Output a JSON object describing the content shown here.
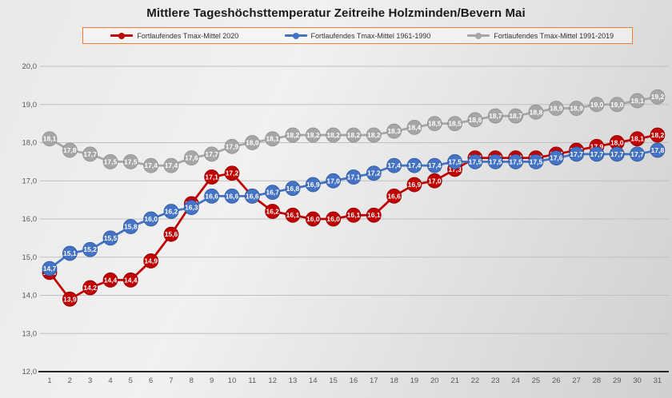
{
  "title": "Mittlere Tageshöchsttemperatur Zeitreihe Holzminden/Bevern Mai",
  "chart_data": {
    "type": "line",
    "title": "Mittlere Tageshöchsttemperatur Zeitreihe Holzminden/Bevern Mai",
    "x": [
      1,
      2,
      3,
      4,
      5,
      6,
      7,
      8,
      9,
      10,
      11,
      12,
      13,
      14,
      15,
      16,
      17,
      18,
      19,
      20,
      21,
      22,
      23,
      24,
      25,
      26,
      27,
      28,
      29,
      30,
      31
    ],
    "series": [
      {
        "name": "Fortlaufendes Tmax-Mittel 2020",
        "color": "#C00000",
        "edge_color": "#8E0000",
        "values": [
          14.6,
          13.9,
          14.2,
          14.4,
          14.4,
          14.9,
          15.6,
          16.4,
          17.1,
          17.2,
          16.6,
          16.2,
          16.1,
          16.0,
          16.0,
          16.1,
          16.1,
          16.6,
          16.9,
          17.0,
          17.3,
          17.6,
          17.6,
          17.6,
          17.6,
          17.7,
          17.8,
          17.9,
          18.0,
          18.1,
          18.2
        ]
      },
      {
        "name": "Fortlaufendes Tmax-Mittel 1961-1990",
        "color": "#4472C4",
        "edge_color": "#2F5597",
        "values": [
          14.7,
          15.1,
          15.2,
          15.5,
          15.8,
          16.0,
          16.2,
          16.3,
          16.6,
          16.6,
          16.6,
          16.7,
          16.8,
          16.9,
          17.0,
          17.1,
          17.2,
          17.4,
          17.4,
          17.4,
          17.5,
          17.5,
          17.5,
          17.5,
          17.5,
          17.6,
          17.7,
          17.7,
          17.7,
          17.7,
          17.8
        ]
      },
      {
        "name": "Fortlaufendes Tmax-Mittel 1991-2019",
        "color": "#A6A6A6",
        "edge_color": "#8C8C8C",
        "values": [
          18.1,
          17.8,
          17.7,
          17.5,
          17.5,
          17.4,
          17.4,
          17.6,
          17.7,
          17.9,
          18.0,
          18.1,
          18.2,
          18.2,
          18.2,
          18.2,
          18.2,
          18.3,
          18.4,
          18.5,
          18.5,
          18.6,
          18.7,
          18.7,
          18.8,
          18.9,
          18.9,
          19.0,
          19.0,
          19.1,
          19.2
        ]
      }
    ],
    "draw_order": [
      2,
      0,
      1
    ],
    "ylim": [
      12.0,
      20.0
    ],
    "ytick_step": 1.0,
    "decimal_separator": ",",
    "point_labels": true,
    "grid": true,
    "legend_position": "top",
    "legend_border_color": "#ED7D31",
    "gridline_color": "#bfbfbf",
    "axis_line_color": "#262626",
    "tick_label_color": "#595959",
    "point_label_color": "#ffffff"
  }
}
